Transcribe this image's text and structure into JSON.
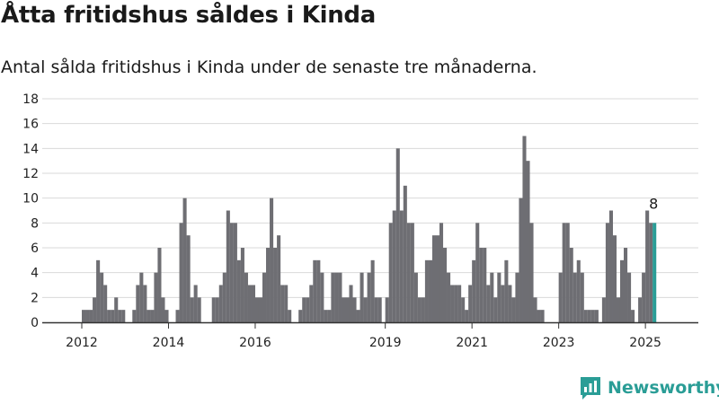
{
  "title": "Åtta fritidshus såldes i Kinda",
  "subtitle": "Antal sålda fritidshus i Kinda under de senaste tre månaderna.",
  "brand": "Newsworthy",
  "colors": {
    "bar": "#6e6e73",
    "highlight": "#2a9d96",
    "grid": "#d9d9d9",
    "axis": "#333333"
  },
  "chart_data": {
    "type": "bar",
    "title": "Åtta fritidshus såldes i Kinda",
    "subtitle": "Antal sålda fritidshus i Kinda under de senaste tre månaderna.",
    "xlabel": "",
    "ylabel": "",
    "ylim": [
      0,
      18
    ],
    "yticks": [
      0,
      2,
      4,
      6,
      8,
      10,
      12,
      14,
      16,
      18
    ],
    "xtick_labels": [
      "2012",
      "2014",
      "2016",
      "2019",
      "2021",
      "2023",
      "2025"
    ],
    "xtick_dates": [
      "2012-01",
      "2014-01",
      "2016-01",
      "2019-01",
      "2021-01",
      "2023-01",
      "2025-01"
    ],
    "grid": true,
    "highlight_label": "8",
    "series": [
      {
        "start_month": "2012-01",
        "values": [
          1,
          1,
          1,
          2,
          5,
          4,
          3,
          1,
          1,
          2,
          1,
          1,
          null,
          null,
          1,
          3,
          4,
          3,
          1,
          1,
          4,
          6,
          2,
          1,
          null,
          null,
          1,
          8,
          10,
          7,
          2,
          3,
          2,
          null,
          null,
          null,
          2,
          2,
          3,
          4,
          9,
          8,
          8,
          5,
          6,
          4,
          3,
          3,
          2,
          2,
          4,
          6,
          10,
          6,
          7,
          3,
          3,
          1,
          null,
          null,
          1,
          2,
          2,
          3,
          5,
          5,
          4,
          1,
          1,
          4,
          4,
          4,
          2,
          2,
          3,
          2,
          1,
          4,
          2,
          4,
          5,
          2,
          2,
          null,
          2,
          8,
          9,
          14,
          9,
          11,
          8,
          8,
          4,
          2,
          2,
          5,
          5,
          7,
          7,
          8,
          6,
          4,
          3,
          3,
          3,
          2,
          1,
          3,
          5,
          8,
          6,
          6,
          3,
          4,
          2,
          4,
          3,
          5,
          3,
          2,
          4,
          10,
          15,
          13,
          8,
          2,
          1,
          1,
          null,
          null,
          null,
          null,
          4,
          8,
          8,
          6,
          4,
          5,
          4,
          1,
          1,
          1,
          1,
          null,
          2,
          8,
          9,
          7,
          2,
          5,
          6,
          4,
          1,
          null,
          2,
          4,
          9,
          8,
          8
        ]
      }
    ]
  }
}
